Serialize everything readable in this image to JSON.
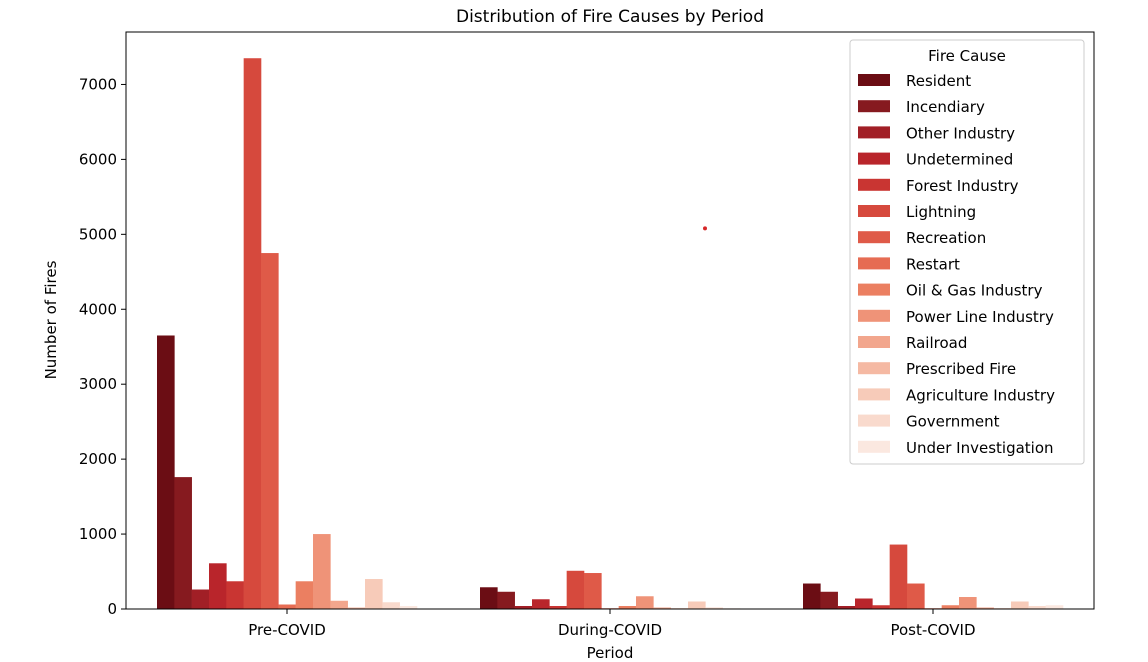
{
  "chart_data": {
    "type": "bar",
    "title": "Distribution of Fire Causes by Period",
    "xlabel": "Period",
    "ylabel": "Number of Fires",
    "categories": [
      "Pre-COVID",
      "During-COVID",
      "Post-COVID"
    ],
    "ylim": [
      0,
      7700
    ],
    "yticks": [
      0,
      1000,
      2000,
      3000,
      4000,
      5000,
      6000,
      7000
    ],
    "grid": false,
    "legend": {
      "title": "Fire Cause",
      "placement": "top-right"
    },
    "series": [
      {
        "name": "Resident",
        "color": "#6b0d14",
        "values": [
          3650,
          290,
          340
        ]
      },
      {
        "name": "Incendiary",
        "color": "#861a1f",
        "values": [
          1760,
          230,
          230
        ]
      },
      {
        "name": "Other Industry",
        "color": "#a11f26",
        "values": [
          260,
          40,
          40
        ]
      },
      {
        "name": "Undetermined",
        "color": "#b9252b",
        "values": [
          610,
          130,
          140
        ]
      },
      {
        "name": "Forest Industry",
        "color": "#c93532",
        "values": [
          370,
          40,
          50
        ]
      },
      {
        "name": "Lightning",
        "color": "#d6493d",
        "values": [
          7350,
          510,
          860
        ]
      },
      {
        "name": "Recreation",
        "color": "#df5a48",
        "values": [
          4750,
          480,
          340
        ]
      },
      {
        "name": "Restart",
        "color": "#e66c53",
        "values": [
          60,
          10,
          10
        ]
      },
      {
        "name": "Oil & Gas Industry",
        "color": "#eb7f61",
        "values": [
          370,
          40,
          50
        ]
      },
      {
        "name": "Power Line Industry",
        "color": "#ef9378",
        "values": [
          1000,
          170,
          160
        ]
      },
      {
        "name": "Railroad",
        "color": "#f2a68d",
        "values": [
          110,
          20,
          20
        ]
      },
      {
        "name": "Prescribed Fire",
        "color": "#f5b9a3",
        "values": [
          20,
          10,
          10
        ]
      },
      {
        "name": "Agriculture Industry",
        "color": "#f7cbb9",
        "values": [
          400,
          100,
          100
        ]
      },
      {
        "name": "Government",
        "color": "#f9dacd",
        "values": [
          90,
          20,
          40
        ]
      },
      {
        "name": "Under Investigation",
        "color": "#fbe8e0",
        "values": [
          40,
          10,
          50
        ]
      }
    ],
    "annotations": [
      {
        "type": "point",
        "x": "During-COVID",
        "y": 5080,
        "color": "#d62728"
      }
    ]
  }
}
